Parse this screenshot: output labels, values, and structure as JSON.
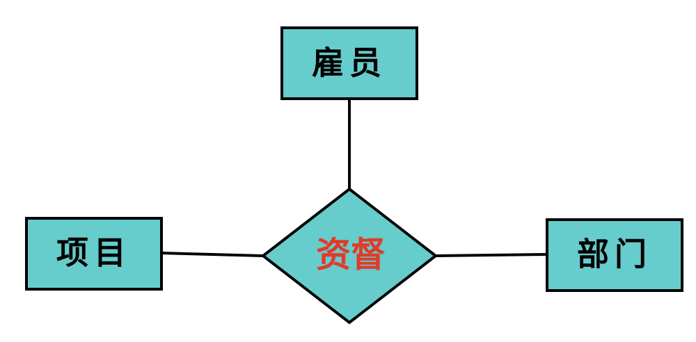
{
  "diagram": {
    "entities": {
      "employee": "雇员",
      "project": "项目",
      "department": "部门"
    },
    "relationship": "资督"
  },
  "colors": {
    "shape_fill": "#66cccc",
    "outline": "#000000",
    "relationship_text": "#e23a2a",
    "entity_text": "#000000",
    "background": "#ffffff"
  }
}
